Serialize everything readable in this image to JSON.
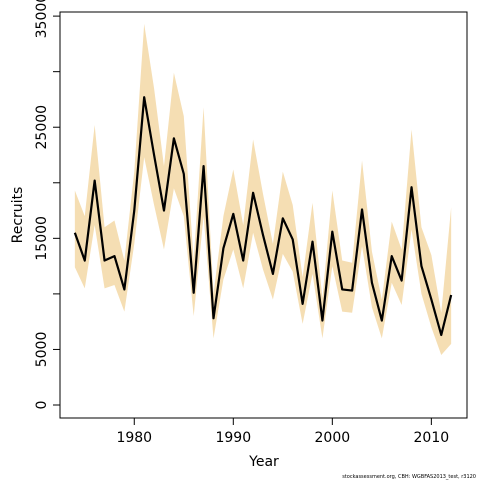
{
  "chart_data": {
    "type": "line",
    "x_label": "Year",
    "y_label": "Recruits",
    "footnote": "stockassessment.org, CBH: WGBFAS2013_test, r3120",
    "x": [
      1974,
      1975,
      1976,
      1977,
      1978,
      1979,
      1980,
      1981,
      1982,
      1983,
      1984,
      1985,
      1986,
      1987,
      1988,
      1989,
      1990,
      1991,
      1992,
      1993,
      1994,
      1995,
      1996,
      1997,
      1998,
      1999,
      2000,
      2001,
      2002,
      2003,
      2004,
      2005,
      2006,
      2007,
      2008,
      2009,
      2010,
      2011,
      2012
    ],
    "values": [
      15500,
      13000,
      20200,
      13000,
      13400,
      10400,
      17500,
      27700,
      22500,
      17500,
      24000,
      20800,
      10100,
      21500,
      7800,
      14100,
      17200,
      13000,
      19100,
      15300,
      11800,
      16800,
      14900,
      9100,
      14700,
      7600,
      15600,
      10400,
      10300,
      17600,
      11000,
      7600,
      13400,
      11200,
      19600,
      12500,
      9500,
      6300,
      9900
    ],
    "upper": [
      19300,
      17000,
      25200,
      16000,
      16600,
      13000,
      21000,
      34300,
      28500,
      21500,
      29900,
      26000,
      13000,
      26800,
      10000,
      17000,
      21200,
      16200,
      23900,
      19000,
      14500,
      21000,
      18000,
      11500,
      18200,
      9600,
      19300,
      13000,
      12800,
      22000,
      13800,
      9500,
      16500,
      14000,
      24800,
      16000,
      13500,
      8300,
      17800
    ],
    "lower": [
      12400,
      10500,
      16200,
      10500,
      10800,
      8400,
      14500,
      22300,
      18000,
      14000,
      19500,
      17000,
      8000,
      17000,
      6000,
      11300,
      14000,
      10500,
      15500,
      12200,
      9500,
      13600,
      12000,
      7300,
      11800,
      6000,
      12500,
      8400,
      8300,
      14300,
      8800,
      6000,
      11000,
      9000,
      15800,
      10000,
      7000,
      4500,
      5500
    ],
    "color": "#000000",
    "band_color": "#f5deb3",
    "xlim": [
      1972.5,
      2013.6
    ],
    "xticks": [
      1980,
      1990,
      2000,
      2010
    ],
    "ylim": [
      -1170,
      35370
    ],
    "yticks": [
      0,
      5000,
      15000,
      25000,
      35000
    ],
    "yticks_unlabeled": [
      10000,
      20000,
      30000
    ]
  }
}
